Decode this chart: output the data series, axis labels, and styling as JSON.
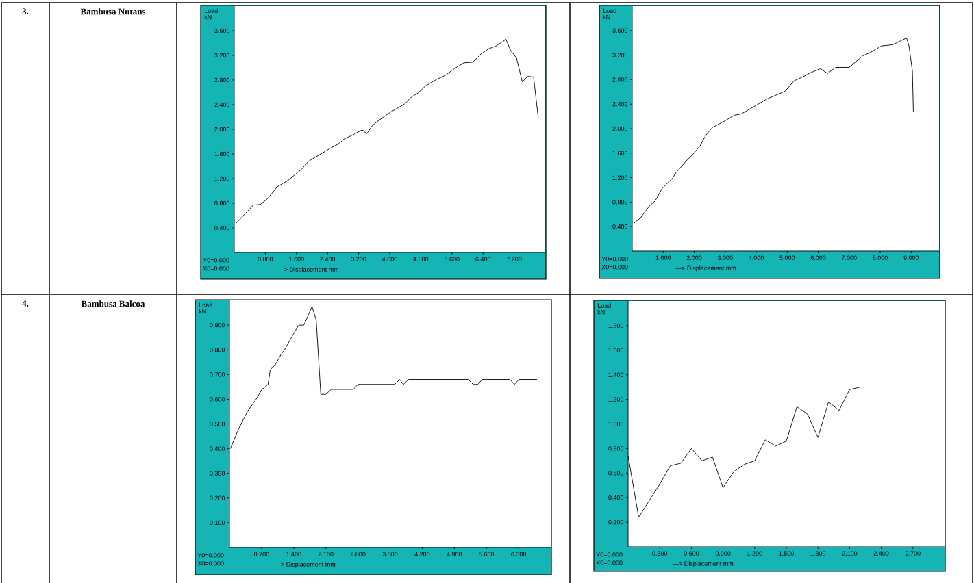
{
  "chart_data": [
    {
      "type": "line",
      "xlabel": "---> Displacement mm",
      "ylabel": "Load kN",
      "annotations": [
        "3.",
        "Bambusa Nutans",
        "Y0=0.000",
        "X0=0.000"
      ],
      "color": "#000000",
      "xlim": [
        0,
        8.0
      ],
      "ylim": [
        0,
        4.0
      ],
      "xticks": [
        {
          "value": 0.8,
          "label": "0.800"
        },
        {
          "value": 1.6,
          "label": "1.600"
        },
        {
          "value": 2.4,
          "label": "2.400"
        },
        {
          "value": 3.2,
          "label": "3.200"
        },
        {
          "value": 4.0,
          "label": "4.000"
        },
        {
          "value": 4.8,
          "label": "4.800"
        },
        {
          "value": 5.6,
          "label": "5.600"
        },
        {
          "value": 6.4,
          "label": "6.400"
        },
        {
          "value": 7.2,
          "label": "7.200"
        }
      ],
      "yticks": [
        {
          "value": 0.4,
          "label": "0.400"
        },
        {
          "value": 0.8,
          "label": "0.800"
        },
        {
          "value": 1.2,
          "label": "1.200"
        },
        {
          "value": 1.6,
          "label": "1.600"
        },
        {
          "value": 2.0,
          "label": "2.000"
        },
        {
          "value": 2.4,
          "label": "2.400"
        },
        {
          "value": 2.8,
          "label": "2.800"
        },
        {
          "value": 3.2,
          "label": "3.200"
        },
        {
          "value": 3.6,
          "label": "3.600"
        }
      ],
      "x": [
        0.04,
        0.49,
        0.67,
        0.85,
        1.11,
        1.38,
        1.73,
        1.91,
        2.2,
        2.49,
        2.67,
        2.82,
        3.02,
        3.29,
        3.41,
        3.55,
        3.73,
        4.02,
        4.38,
        4.55,
        4.73,
        4.91,
        5.2,
        5.44,
        5.67,
        5.91,
        6.14,
        6.32,
        6.55,
        6.73,
        6.99,
        7.11,
        7.26,
        7.41,
        7.55,
        7.7,
        7.82
      ],
      "values": [
        0.47,
        0.77,
        0.78,
        0.87,
        1.07,
        1.17,
        1.35,
        1.48,
        1.59,
        1.7,
        1.76,
        1.84,
        1.9,
        1.99,
        1.93,
        2.06,
        2.15,
        2.28,
        2.41,
        2.52,
        2.59,
        2.7,
        2.81,
        2.88,
        2.99,
        3.08,
        3.09,
        3.21,
        3.31,
        3.35,
        3.46,
        3.28,
        3.16,
        2.77,
        2.86,
        2.85,
        2.19
      ]
    },
    {
      "type": "line",
      "xlabel": "---> Displacement mm",
      "ylabel": "Load kN",
      "annotations": [
        "Y0=0.000",
        "X0=0.000"
      ],
      "color": "#000000",
      "xlim": [
        0,
        9.9
      ],
      "ylim": [
        0,
        4.0
      ],
      "xticks": [
        {
          "value": 1,
          "label": "1.000"
        },
        {
          "value": 2,
          "label": "2.000"
        },
        {
          "value": 3,
          "label": "3.000"
        },
        {
          "value": 4,
          "label": "4.000"
        },
        {
          "value": 5,
          "label": "5.000"
        },
        {
          "value": 6,
          "label": "6.000"
        },
        {
          "value": 7,
          "label": "7.000"
        },
        {
          "value": 8,
          "label": "8.000"
        },
        {
          "value": 9,
          "label": "9.000"
        }
      ],
      "yticks": [
        {
          "value": 0.4,
          "label": "0.400"
        },
        {
          "value": 0.8,
          "label": "0.800"
        },
        {
          "value": 1.2,
          "label": "1.200"
        },
        {
          "value": 1.6,
          "label": "1.600"
        },
        {
          "value": 2.0,
          "label": "2.000"
        },
        {
          "value": 2.4,
          "label": "2.400"
        },
        {
          "value": 2.8,
          "label": "2.800"
        },
        {
          "value": 3.2,
          "label": "3.200"
        },
        {
          "value": 3.6,
          "label": "3.600"
        }
      ],
      "x": [
        0.04,
        0.26,
        0.56,
        0.74,
        0.96,
        1.3,
        1.41,
        1.74,
        1.96,
        2.19,
        2.37,
        2.59,
        2.74,
        3.0,
        3.3,
        3.52,
        3.96,
        4.33,
        4.7,
        4.93,
        5.22,
        5.52,
        5.74,
        6.07,
        6.3,
        6.56,
        7.0,
        7.44,
        7.67,
        8.04,
        8.41,
        8.85,
        8.93,
        9.04,
        9.07
      ],
      "values": [
        0.45,
        0.54,
        0.74,
        0.82,
        1.02,
        1.19,
        1.28,
        1.47,
        1.58,
        1.72,
        1.89,
        2.02,
        2.06,
        2.13,
        2.22,
        2.24,
        2.37,
        2.48,
        2.56,
        2.61,
        2.78,
        2.85,
        2.91,
        2.98,
        2.9,
        3.0,
        3.0,
        3.19,
        3.24,
        3.35,
        3.37,
        3.48,
        3.35,
        2.94,
        2.28
      ]
    },
    {
      "type": "line",
      "xlabel": "---> Displacement mm",
      "ylabel": "Load kN",
      "annotations": [
        "4.",
        "Bambusa Balcoa",
        "Y0=0.000",
        "X0=0.000"
      ],
      "color": "#000000",
      "xlim": [
        0,
        7.0
      ],
      "ylim": [
        0,
        1.0
      ],
      "xticks": [
        {
          "value": 0.7,
          "label": "0.700"
        },
        {
          "value": 1.4,
          "label": "1.400"
        },
        {
          "value": 2.1,
          "label": "2.100"
        },
        {
          "value": 2.8,
          "label": "2.800"
        },
        {
          "value": 3.5,
          "label": "3.500"
        },
        {
          "value": 4.2,
          "label": "4.200"
        },
        {
          "value": 4.9,
          "label": "4.900"
        },
        {
          "value": 5.6,
          "label": "5.600"
        },
        {
          "value": 6.3,
          "label": "6.300"
        }
      ],
      "yticks": [
        {
          "value": 0.1,
          "label": "0.100"
        },
        {
          "value": 0.2,
          "label": "0.200"
        },
        {
          "value": 0.3,
          "label": "0.300"
        },
        {
          "value": 0.4,
          "label": "0.400"
        },
        {
          "value": 0.5,
          "label": "0.500"
        },
        {
          "value": 0.6,
          "label": "0.600"
        },
        {
          "value": 0.7,
          "label": "0.700"
        },
        {
          "value": 0.8,
          "label": "0.800"
        },
        {
          "value": 0.9,
          "label": "0.900"
        }
      ],
      "x": [
        0.02,
        0.2,
        0.39,
        0.58,
        0.71,
        0.84,
        0.89,
        1.0,
        1.12,
        1.2,
        1.38,
        1.51,
        1.62,
        1.8,
        1.89,
        1.99,
        2.1,
        2.22,
        2.7,
        2.8,
        3.6,
        3.71,
        3.79,
        3.9,
        5.2,
        5.31,
        5.41,
        5.51,
        6.11,
        6.21,
        6.31,
        6.7
      ],
      "values": [
        0.4,
        0.48,
        0.55,
        0.6,
        0.64,
        0.66,
        0.72,
        0.74,
        0.78,
        0.8,
        0.86,
        0.9,
        0.9,
        0.975,
        0.92,
        0.62,
        0.62,
        0.64,
        0.64,
        0.66,
        0.66,
        0.68,
        0.66,
        0.68,
        0.68,
        0.66,
        0.66,
        0.68,
        0.68,
        0.66,
        0.68,
        0.68
      ]
    },
    {
      "type": "line",
      "xlabel": "---> Displacement mm",
      "ylabel": "Load kN",
      "annotations": [
        "Y0=0.000",
        "X0=0.000"
      ],
      "color": "#000000",
      "xlim": [
        0,
        3.0
      ],
      "ylim": [
        0,
        2.0
      ],
      "xticks": [
        {
          "value": 0.3,
          "label": "0.300"
        },
        {
          "value": 0.6,
          "label": "0.600"
        },
        {
          "value": 0.9,
          "label": "0.900"
        },
        {
          "value": 1.2,
          "label": "1.200"
        },
        {
          "value": 1.5,
          "label": "1.500"
        },
        {
          "value": 1.8,
          "label": "1.800"
        },
        {
          "value": 2.1,
          "label": "2.100"
        },
        {
          "value": 2.4,
          "label": "2.400"
        },
        {
          "value": 2.7,
          "label": "2.700"
        }
      ],
      "yticks": [
        {
          "value": 0.2,
          "label": "0.200"
        },
        {
          "value": 0.4,
          "label": "0.400"
        },
        {
          "value": 0.6,
          "label": "0.600"
        },
        {
          "value": 0.8,
          "label": "0.800"
        },
        {
          "value": 1.0,
          "label": "1.000"
        },
        {
          "value": 1.2,
          "label": "1.200"
        },
        {
          "value": 1.4,
          "label": "1.400"
        },
        {
          "value": 1.6,
          "label": "1.600"
        },
        {
          "value": 1.8,
          "label": "1.800"
        }
      ],
      "x": [
        0.0,
        0.1,
        0.3,
        0.4,
        0.5,
        0.6,
        0.7,
        0.8,
        0.9,
        1.0,
        1.1,
        1.2,
        1.3,
        1.4,
        1.5,
        1.6,
        1.7,
        1.8,
        1.9,
        2.0,
        2.1,
        2.2
      ],
      "values": [
        0.74,
        0.24,
        0.51,
        0.66,
        0.68,
        0.8,
        0.7,
        0.73,
        0.48,
        0.61,
        0.67,
        0.7,
        0.87,
        0.82,
        0.86,
        1.14,
        1.08,
        0.89,
        1.18,
        1.11,
        1.28,
        1.3
      ]
    }
  ]
}
